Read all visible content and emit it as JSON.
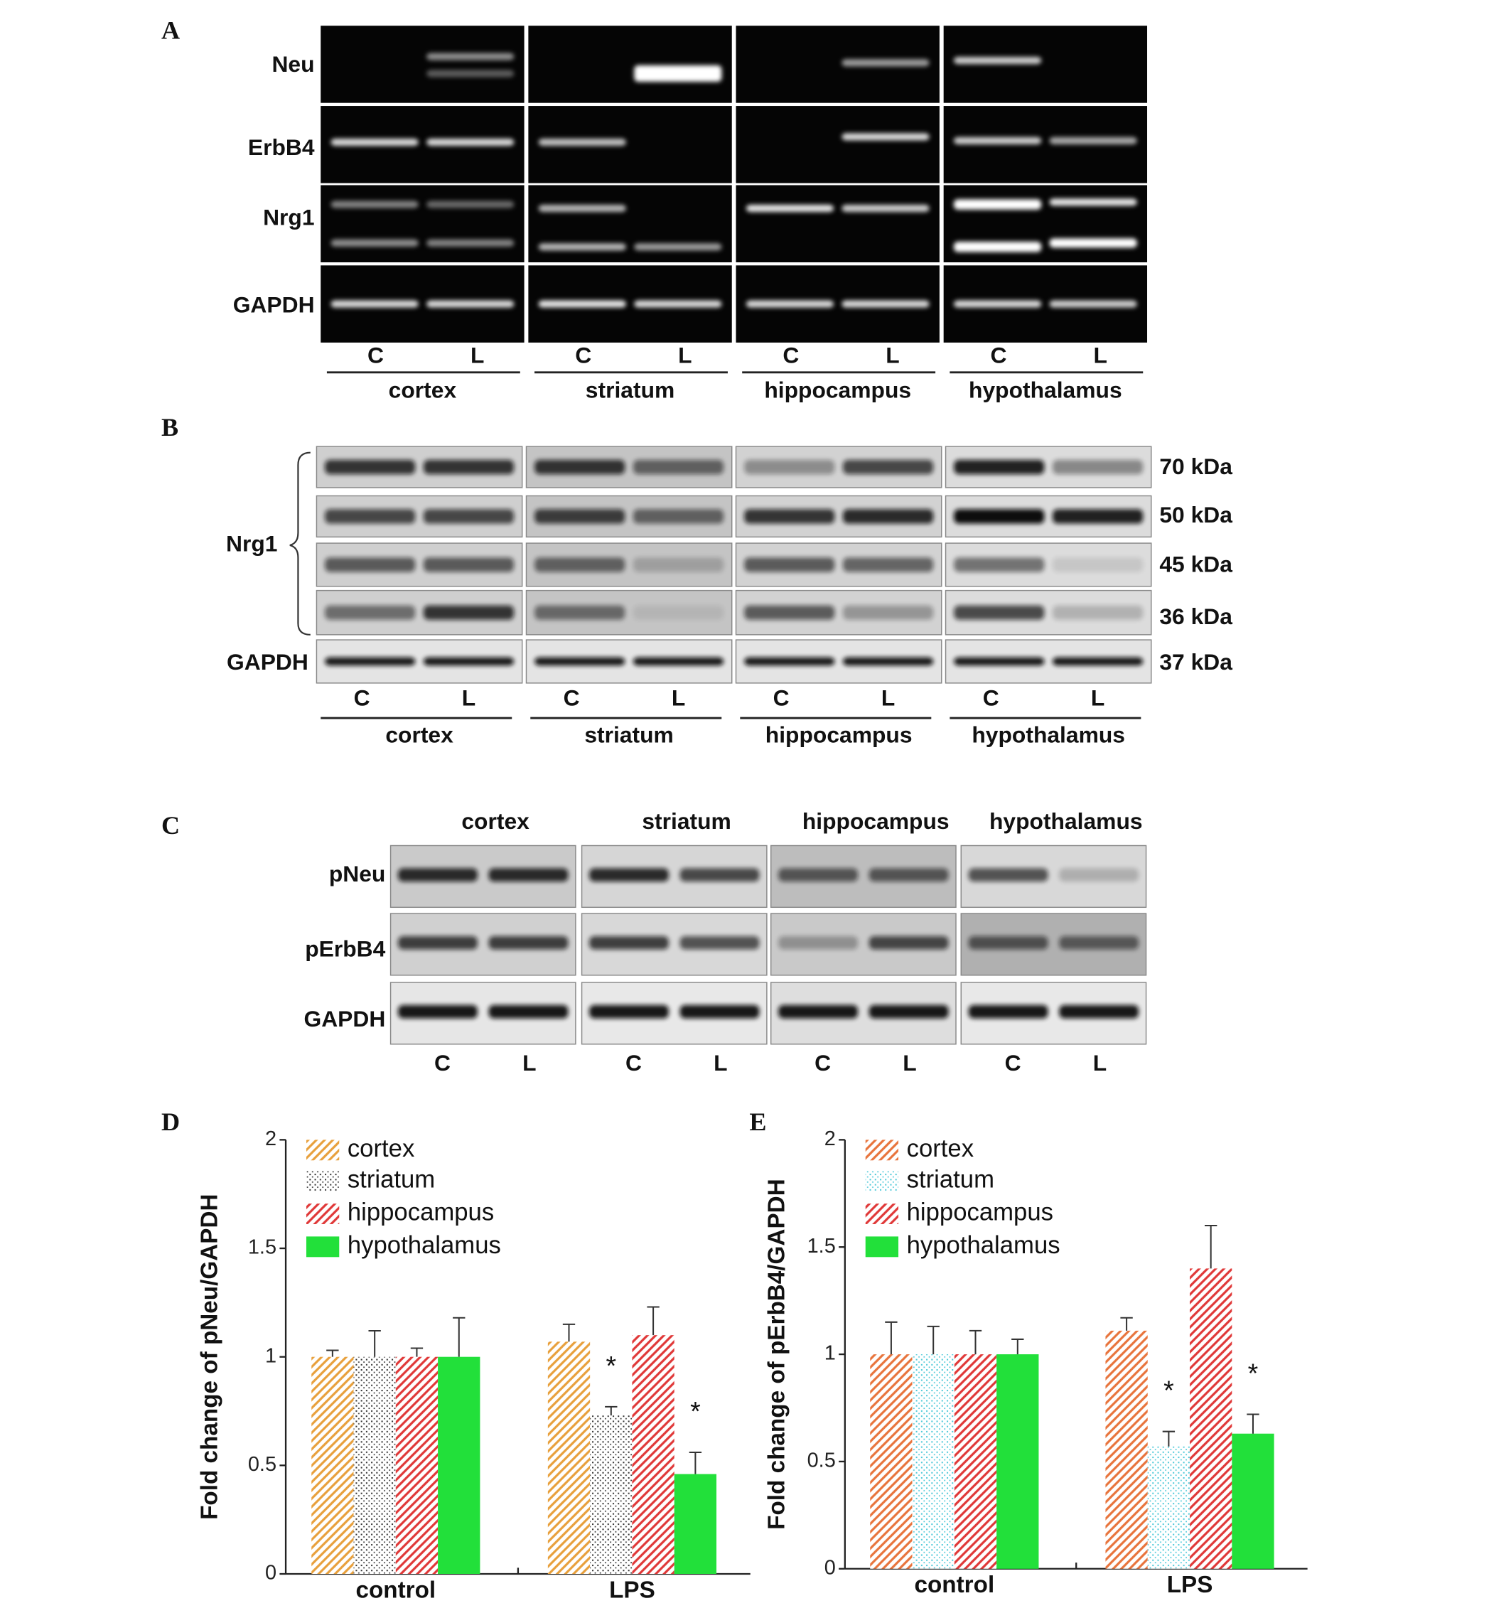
{
  "panel_labels": [
    "A",
    "B",
    "C",
    "D",
    "E"
  ],
  "panel_a": {
    "rows": [
      "Neu",
      "ErbB4",
      "Nrg1",
      "GAPDH"
    ],
    "lanes": [
      "C",
      "L",
      "C",
      "L",
      "C",
      "L",
      "C",
      "L"
    ],
    "regions": [
      "cortex",
      "striatum",
      "hippocampus",
      "hypothalamus"
    ]
  },
  "panel_b": {
    "group_label": "Nrg1",
    "rows": [
      "GAPDH"
    ],
    "sizes": [
      "70 kDa",
      "50 kDa",
      "45 kDa",
      "36 kDa",
      "37 kDa"
    ],
    "lanes": [
      "C",
      "L",
      "C",
      "L",
      "C",
      "L",
      "C",
      "L"
    ],
    "regions": [
      "cortex",
      "striatum",
      "hippocampus",
      "hypothalamus"
    ]
  },
  "panel_c": {
    "regions": [
      "cortex",
      "striatum",
      "hippocampus",
      "hypothalamus"
    ],
    "rows": [
      "pNeu",
      "pErbB4",
      "GAPDH"
    ],
    "lanes": [
      "C",
      "L",
      "C",
      "L",
      "C",
      "L",
      "C",
      "L"
    ]
  },
  "chart_data": [
    {
      "type": "bar",
      "y_label": "Fold change of pNeu/GAPDH",
      "categories": [
        "control",
        "LPS"
      ],
      "series": [
        {
          "name": "cortex",
          "color": "#e8a03c",
          "pattern": "hatch",
          "values": [
            1,
            1.07
          ],
          "errors": [
            0.03,
            0.08
          ]
        },
        {
          "name": "striatum",
          "color": "#333333",
          "pattern": "dots",
          "values": [
            1,
            0.73
          ],
          "errors": [
            0.12,
            0.04
          ]
        },
        {
          "name": "hippocampus",
          "color": "#e03838",
          "pattern": "hatch",
          "values": [
            1,
            1.1
          ],
          "errors": [
            0.04,
            0.13
          ]
        },
        {
          "name": "hypothalamus",
          "color": "#22e03a",
          "pattern": "solid",
          "values": [
            1,
            0.46
          ],
          "errors": [
            0.18,
            0.1
          ]
        }
      ],
      "annotations": [
        "*",
        "*"
      ],
      "ylim": [
        0,
        2
      ],
      "yticks": [
        0,
        0.5,
        1,
        1.5,
        2
      ],
      "grid": false,
      "legend": "upper left"
    },
    {
      "type": "bar",
      "y_label": "Fold change of pErbB4/GAPDH",
      "categories": [
        "control",
        "LPS"
      ],
      "series": [
        {
          "name": "cortex",
          "color": "#e8743c",
          "pattern": "hatch",
          "values": [
            1,
            1.11
          ],
          "errors": [
            0.15,
            0.06
          ]
        },
        {
          "name": "striatum",
          "color": "#4cc8d8",
          "pattern": "dots",
          "values": [
            1,
            0.57
          ],
          "errors": [
            0.13,
            0.07
          ]
        },
        {
          "name": "hippocampus",
          "color": "#e03838",
          "pattern": "hatch",
          "values": [
            1,
            1.4
          ],
          "errors": [
            0.11,
            0.2
          ]
        },
        {
          "name": "hypothalamus",
          "color": "#22e03a",
          "pattern": "solid",
          "values": [
            1,
            0.63
          ],
          "errors": [
            0.07,
            0.09
          ]
        }
      ],
      "annotations": [
        "*",
        "*"
      ],
      "ylim": [
        0,
        2
      ],
      "yticks": [
        0,
        0.5,
        1,
        1.5,
        2
      ],
      "grid": false,
      "legend": "upper left"
    }
  ]
}
